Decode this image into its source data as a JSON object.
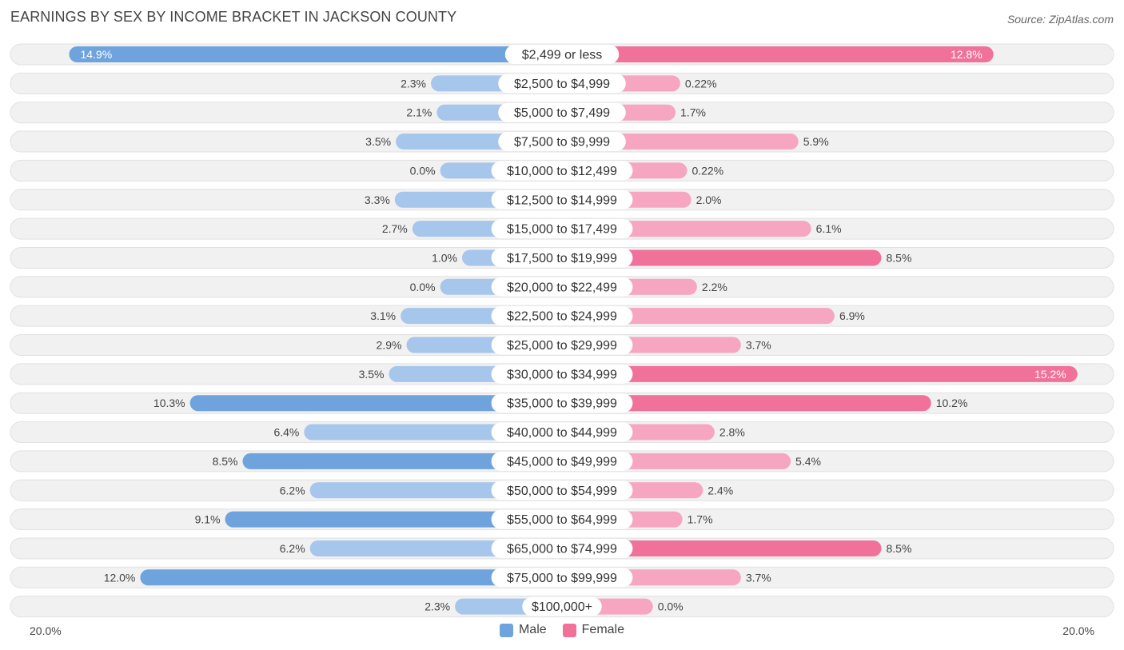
{
  "chart_data": {
    "type": "bar",
    "orientation": "horizontal-diverging",
    "title": "EARNINGS BY SEX BY INCOME BRACKET IN JACKSON COUNTY",
    "source": "Source: ZipAtlas.com",
    "categories": [
      "$2,499 or less",
      "$2,500 to $4,999",
      "$5,000 to $7,499",
      "$7,500 to $9,999",
      "$10,000 to $12,499",
      "$12,500 to $14,999",
      "$15,000 to $17,499",
      "$17,500 to $19,999",
      "$20,000 to $22,499",
      "$22,500 to $24,999",
      "$25,000 to $29,999",
      "$30,000 to $34,999",
      "$35,000 to $39,999",
      "$40,000 to $44,999",
      "$45,000 to $49,999",
      "$50,000 to $54,999",
      "$55,000 to $64,999",
      "$65,000 to $74,999",
      "$75,000 to $99,999",
      "$100,000+"
    ],
    "series": [
      {
        "name": "Male",
        "values": [
          14.9,
          2.3,
          2.1,
          3.5,
          0.0,
          3.3,
          2.7,
          1.0,
          0.0,
          3.1,
          2.9,
          3.5,
          10.3,
          6.4,
          8.5,
          6.2,
          9.1,
          6.2,
          12.0,
          2.3
        ],
        "labels": [
          "14.9%",
          "2.3%",
          "2.1%",
          "3.5%",
          "0.0%",
          "3.3%",
          "2.7%",
          "1.0%",
          "0.0%",
          "3.1%",
          "2.9%",
          "3.5%",
          "10.3%",
          "6.4%",
          "8.5%",
          "6.2%",
          "9.1%",
          "6.2%",
          "12.0%",
          "2.3%"
        ]
      },
      {
        "name": "Female",
        "values": [
          12.8,
          0.22,
          1.7,
          5.9,
          0.22,
          2.0,
          6.1,
          8.5,
          2.2,
          6.9,
          3.7,
          15.2,
          10.2,
          2.8,
          5.4,
          2.4,
          1.7,
          8.5,
          3.7,
          0.0
        ],
        "labels": [
          "12.8%",
          "0.22%",
          "1.7%",
          "5.9%",
          "0.22%",
          "2.0%",
          "6.1%",
          "8.5%",
          "2.2%",
          "6.9%",
          "3.7%",
          "15.2%",
          "10.2%",
          "2.8%",
          "5.4%",
          "2.4%",
          "1.7%",
          "8.5%",
          "3.7%",
          "0.0%"
        ]
      }
    ],
    "xlim": [
      -20,
      20
    ],
    "axis_left_label": "20.0%",
    "axis_right_label": "20.0%",
    "legend": [
      "Male",
      "Female"
    ],
    "legend_position": "bottom-center",
    "colors": {
      "male": "#6fa3dd",
      "male_light": "#a6c6eb",
      "female": "#f0719a",
      "female_light": "#f6a6c0",
      "row_bg": "#f1f1f1",
      "row_border": "#e1e1e1"
    }
  }
}
